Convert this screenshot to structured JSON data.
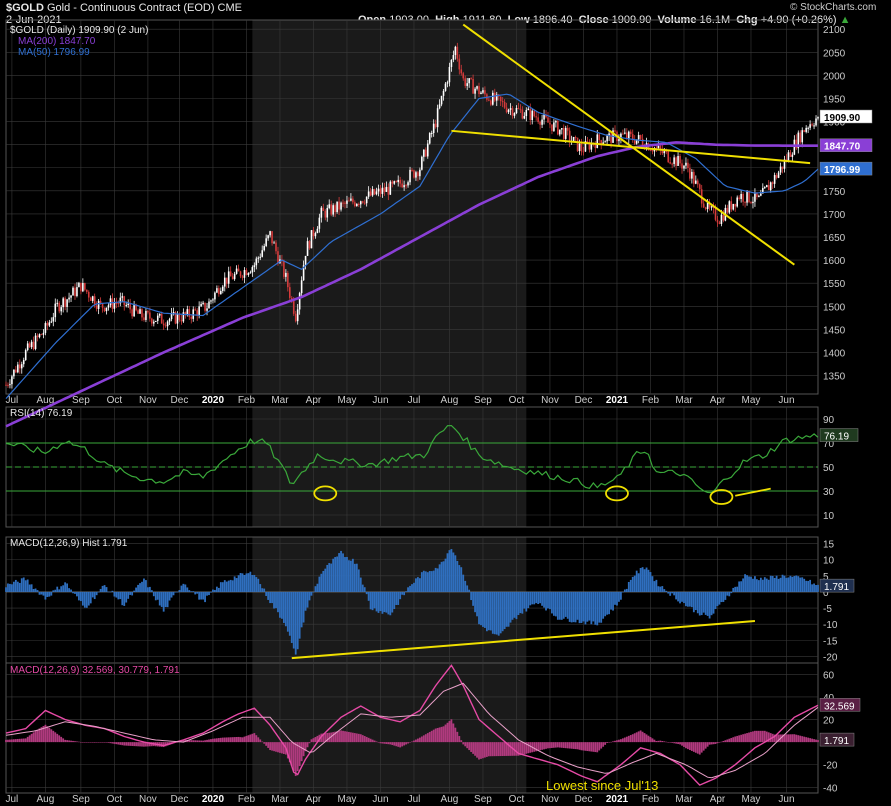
{
  "header": {
    "symbol": "$GOLD",
    "name": "Gold - Continuous Contract (EOD)",
    "exchange": "CME",
    "date": "2-Jun-2021",
    "open_label": "Open",
    "open": "1903.00",
    "high_label": "High",
    "high": "1911.80",
    "low_label": "Low",
    "low": "1896.40",
    "close_label": "Close",
    "close": "1909.90",
    "volume_label": "Volume",
    "volume": "16.1M",
    "chg_label": "Chg",
    "chg": "+4.90 (+0.26%)",
    "brand": "© StockCharts.com"
  },
  "colors": {
    "background": "#000000",
    "grid": "#3a3a3a",
    "up": "#ffffff",
    "down": "#d63b3b",
    "ma200": "#8a3fd6",
    "ma50": "#2f6fd1",
    "rsi": "#3aa83a",
    "macd_hist": "#2f6fbf",
    "macd_line": "#e64aa6",
    "signal_line": "#e8a0c8",
    "annotation": "#f0e000",
    "shade": "#1a1a1a"
  },
  "chart_data": [
    {
      "type": "candlestick",
      "title": "$GOLD (Daily) 1909.90 (2 Jun)",
      "legend": [
        {
          "name": "MA(200) 1847.70",
          "color": "#8a3fd6"
        },
        {
          "name": "MA(50) 1796.99",
          "color": "#2f6fd1"
        }
      ],
      "x_ticks": [
        "Jul",
        "Aug",
        "Sep",
        "Oct",
        "Nov",
        "Dec",
        "2020",
        "Feb",
        "Mar",
        "Apr",
        "May",
        "Jun",
        "Jul",
        "Aug",
        "Sep",
        "Oct",
        "Nov",
        "Dec",
        "2021",
        "Feb",
        "Mar",
        "Apr",
        "May",
        "Jun"
      ],
      "y_ticks": [
        1350,
        1400,
        1450,
        1500,
        1550,
        1600,
        1650,
        1700,
        1750,
        1800,
        1850,
        1900,
        1950,
        2000,
        2050,
        2100
      ],
      "ylim": [
        1310,
        2120
      ],
      "price_path": [
        [
          0,
          1330
        ],
        [
          10,
          1400
        ],
        [
          20,
          1450
        ],
        [
          26,
          1500
        ],
        [
          32,
          1520
        ],
        [
          38,
          1545
        ],
        [
          48,
          1500
        ],
        [
          58,
          1510
        ],
        [
          68,
          1480
        ],
        [
          80,
          1470
        ],
        [
          92,
          1480
        ],
        [
          102,
          1500
        ],
        [
          110,
          1555
        ],
        [
          118,
          1570
        ],
        [
          126,
          1590
        ],
        [
          134,
          1655
        ],
        [
          142,
          1560
        ],
        [
          147,
          1480
        ],
        [
          152,
          1620
        ],
        [
          160,
          1700
        ],
        [
          172,
          1720
        ],
        [
          185,
          1740
        ],
        [
          198,
          1760
        ],
        [
          210,
          1800
        ],
        [
          218,
          1900
        ],
        [
          223,
          1980
        ],
        [
          228,
          2060
        ],
        [
          232,
          1990
        ],
        [
          242,
          1960
        ],
        [
          255,
          1930
        ],
        [
          270,
          1910
        ],
        [
          282,
          1880
        ],
        [
          292,
          1840
        ],
        [
          300,
          1860
        ],
        [
          312,
          1870
        ],
        [
          322,
          1860
        ],
        [
          334,
          1830
        ],
        [
          346,
          1800
        ],
        [
          356,
          1710
        ],
        [
          362,
          1690
        ],
        [
          372,
          1740
        ],
        [
          382,
          1730
        ],
        [
          392,
          1790
        ],
        [
          400,
          1850
        ],
        [
          406,
          1890
        ],
        [
          412,
          1909.9
        ]
      ],
      "ma200": [
        [
          0,
          1240
        ],
        [
          40,
          1320
        ],
        [
          80,
          1400
        ],
        [
          120,
          1475
        ],
        [
          150,
          1520
        ],
        [
          180,
          1580
        ],
        [
          210,
          1650
        ],
        [
          240,
          1720
        ],
        [
          270,
          1780
        ],
        [
          300,
          1825
        ],
        [
          320,
          1845
        ],
        [
          340,
          1855
        ],
        [
          360,
          1850
        ],
        [
          380,
          1848
        ],
        [
          412,
          1847.7
        ]
      ],
      "ma50": [
        [
          0,
          1300
        ],
        [
          25,
          1420
        ],
        [
          45,
          1505
        ],
        [
          60,
          1510
        ],
        [
          80,
          1485
        ],
        [
          100,
          1480
        ],
        [
          120,
          1540
        ],
        [
          140,
          1600
        ],
        [
          150,
          1580
        ],
        [
          165,
          1640
        ],
        [
          190,
          1700
        ],
        [
          210,
          1760
        ],
        [
          225,
          1870
        ],
        [
          240,
          1950
        ],
        [
          255,
          1960
        ],
        [
          270,
          1920
        ],
        [
          290,
          1890
        ],
        [
          305,
          1870
        ],
        [
          320,
          1860
        ],
        [
          335,
          1855
        ],
        [
          350,
          1820
        ],
        [
          365,
          1760
        ],
        [
          380,
          1745
        ],
        [
          395,
          1750
        ],
        [
          405,
          1770
        ],
        [
          412,
          1796.99
        ]
      ],
      "value_labels": [
        {
          "text": "1909.90"
        },
        {
          "text": "1847.70"
        },
        {
          "text": "1796.99"
        }
      ],
      "trendlines": [
        {
          "from": [
            232,
            2110
          ],
          "to": [
            400,
            1590
          ]
        },
        {
          "from": [
            226,
            1880
          ],
          "to": [
            408,
            1810
          ]
        }
      ]
    },
    {
      "type": "line",
      "title": "RSI(14) 76.19",
      "value_label": "76.19",
      "y_ticks": [
        10,
        30,
        50,
        70,
        90
      ],
      "ylim": [
        0,
        100
      ],
      "levels": [
        30,
        50,
        70
      ],
      "series": [
        {
          "values": [
            [
              0,
              70
            ],
            [
              20,
              62
            ],
            [
              30,
              72
            ],
            [
              40,
              65
            ],
            [
              50,
              52
            ],
            [
              60,
              45
            ],
            [
              70,
              40
            ],
            [
              80,
              38
            ],
            [
              90,
              45
            ],
            [
              100,
              42
            ],
            [
              110,
              55
            ],
            [
              118,
              65
            ],
            [
              125,
              72
            ],
            [
              132,
              70
            ],
            [
              140,
              50
            ],
            [
              145,
              35
            ],
            [
              150,
              45
            ],
            [
              158,
              60
            ],
            [
              170,
              55
            ],
            [
              185,
              52
            ],
            [
              200,
              58
            ],
            [
              212,
              60
            ],
            [
              220,
              78
            ],
            [
              226,
              85
            ],
            [
              232,
              75
            ],
            [
              240,
              60
            ],
            [
              255,
              50
            ],
            [
              270,
              45
            ],
            [
              285,
              40
            ],
            [
              300,
              33
            ],
            [
              310,
              40
            ],
            [
              320,
              60
            ],
            [
              325,
              65
            ],
            [
              330,
              45
            ],
            [
              342,
              45
            ],
            [
              350,
              35
            ],
            [
              357,
              26
            ],
            [
              365,
              40
            ],
            [
              375,
              55
            ],
            [
              385,
              60
            ],
            [
              395,
              72
            ],
            [
              405,
              75
            ],
            [
              412,
              76.19
            ]
          ]
        }
      ],
      "annotation_circles": [
        {
          "x": 162,
          "y": 28
        },
        {
          "x": 310,
          "y": 28
        },
        {
          "x": 363,
          "y": 25
        }
      ]
    },
    {
      "type": "bar",
      "title": "MACD(12,26,9) Hist 1.791",
      "value_label": "1.791",
      "y_ticks": [
        -20,
        -15,
        -10,
        -5,
        0,
        5,
        10,
        15
      ],
      "ylim": [
        -22,
        17
      ],
      "values": [
        [
          0,
          2
        ],
        [
          10,
          4
        ],
        [
          20,
          -2
        ],
        [
          30,
          3
        ],
        [
          40,
          -5
        ],
        [
          50,
          2
        ],
        [
          60,
          -4
        ],
        [
          70,
          4
        ],
        [
          80,
          -6
        ],
        [
          90,
          3
        ],
        [
          100,
          -3
        ],
        [
          110,
          3
        ],
        [
          118,
          5
        ],
        [
          126,
          6
        ],
        [
          134,
          -3
        ],
        [
          142,
          -10
        ],
        [
          147,
          -20
        ],
        [
          152,
          -6
        ],
        [
          160,
          6
        ],
        [
          170,
          12
        ],
        [
          178,
          9
        ],
        [
          185,
          -5
        ],
        [
          195,
          -7
        ],
        [
          205,
          2
        ],
        [
          212,
          6
        ],
        [
          220,
          8
        ],
        [
          226,
          14
        ],
        [
          232,
          6
        ],
        [
          240,
          -10
        ],
        [
          250,
          -14
        ],
        [
          260,
          -7
        ],
        [
          270,
          -3
        ],
        [
          280,
          -8
        ],
        [
          290,
          -9
        ],
        [
          300,
          -10
        ],
        [
          310,
          -4
        ],
        [
          318,
          5
        ],
        [
          325,
          8
        ],
        [
          330,
          3
        ],
        [
          340,
          -2
        ],
        [
          350,
          -6
        ],
        [
          357,
          -8
        ],
        [
          365,
          -2
        ],
        [
          375,
          5
        ],
        [
          385,
          4
        ],
        [
          395,
          5
        ],
        [
          405,
          4
        ],
        [
          412,
          1.79
        ]
      ],
      "trendline": {
        "from": [
          145,
          -20.5
        ],
        "to": [
          380,
          -9
        ]
      }
    },
    {
      "type": "line",
      "title": "MACD(12,26,9) 32.569, 30.779, 1.791",
      "value_labels": [
        {
          "text": "32.569"
        },
        {
          "text": "1.791"
        }
      ],
      "y_ticks": [
        -40,
        -20,
        20,
        40,
        60
      ],
      "ylim": [
        -45,
        70
      ],
      "series": [
        {
          "name": "MACD(12,26,9)",
          "values": [
            [
              0,
              8
            ],
            [
              10,
              12
            ],
            [
              20,
              28
            ],
            [
              30,
              20
            ],
            [
              40,
              15
            ],
            [
              50,
              12
            ],
            [
              60,
              5
            ],
            [
              70,
              0
            ],
            [
              80,
              -3
            ],
            [
              90,
              2
            ],
            [
              100,
              8
            ],
            [
              110,
              18
            ],
            [
              118,
              25
            ],
            [
              126,
              30
            ],
            [
              134,
              15
            ],
            [
              142,
              -5
            ],
            [
              147,
              -32
            ],
            [
              152,
              -15
            ],
            [
              160,
              5
            ],
            [
              170,
              22
            ],
            [
              180,
              32
            ],
            [
              190,
              22
            ],
            [
              200,
              18
            ],
            [
              210,
              28
            ],
            [
              218,
              50
            ],
            [
              226,
              68
            ],
            [
              232,
              50
            ],
            [
              240,
              20
            ],
            [
              250,
              5
            ],
            [
              260,
              -10
            ],
            [
              270,
              -15
            ],
            [
              280,
              -20
            ],
            [
              292,
              -30
            ],
            [
              300,
              -35
            ],
            [
              312,
              -20
            ],
            [
              322,
              -5
            ],
            [
              332,
              -10
            ],
            [
              342,
              -20
            ],
            [
              352,
              -38
            ],
            [
              360,
              -32
            ],
            [
              370,
              -20
            ],
            [
              380,
              -5
            ],
            [
              390,
              5
            ],
            [
              400,
              22
            ],
            [
              412,
              32.57
            ]
          ]
        },
        {
          "name": "signal",
          "values": [
            [
              0,
              6
            ],
            [
              15,
              10
            ],
            [
              30,
              18
            ],
            [
              45,
              14
            ],
            [
              60,
              8
            ],
            [
              75,
              2
            ],
            [
              90,
              0
            ],
            [
              105,
              10
            ],
            [
              120,
              22
            ],
            [
              134,
              22
            ],
            [
              145,
              0
            ],
            [
              155,
              -10
            ],
            [
              165,
              5
            ],
            [
              180,
              25
            ],
            [
              195,
              22
            ],
            [
              210,
              24
            ],
            [
              222,
              45
            ],
            [
              232,
              52
            ],
            [
              245,
              25
            ],
            [
              260,
              2
            ],
            [
              275,
              -12
            ],
            [
              290,
              -22
            ],
            [
              305,
              -28
            ],
            [
              318,
              -18
            ],
            [
              330,
              -10
            ],
            [
              345,
              -20
            ],
            [
              357,
              -32
            ],
            [
              370,
              -25
            ],
            [
              385,
              -10
            ],
            [
              400,
              15
            ],
            [
              412,
              30.78
            ]
          ]
        }
      ],
      "annotation_text": "Lowest since Jul'13"
    }
  ]
}
